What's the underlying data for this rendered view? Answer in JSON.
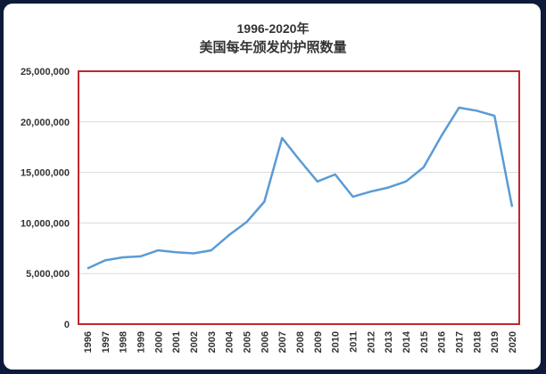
{
  "chart_data": {
    "type": "line",
    "title": "1996-2020年",
    "subtitle": "美国每年颁发的护照数量",
    "xlabel": "",
    "ylabel": "",
    "x": [
      "1996",
      "1997",
      "1998",
      "1999",
      "2000",
      "2001",
      "2002",
      "2003",
      "2004",
      "2005",
      "2006",
      "2007",
      "2008",
      "2009",
      "2010",
      "2011",
      "2012",
      "2013",
      "2014",
      "2015",
      "2016",
      "2017",
      "2018",
      "2019",
      "2020"
    ],
    "series": [
      {
        "values": [
          5500000,
          6300000,
          6600000,
          6700000,
          7300000,
          7100000,
          7000000,
          7300000,
          8800000,
          10100000,
          12100000,
          18400000,
          16200000,
          14100000,
          14800000,
          12600000,
          13100000,
          13500000,
          14100000,
          15500000,
          18600000,
          21400000,
          21100000,
          20600000,
          11600000
        ]
      }
    ],
    "y_ticks": [
      "0",
      "5,000,000",
      "10,000,000",
      "15,000,000",
      "20,000,000",
      "25,000,000"
    ],
    "ylim": [
      0,
      25000000
    ],
    "grid": true,
    "line_color": "#5b9bd5",
    "frame_color": "#c0282d"
  }
}
